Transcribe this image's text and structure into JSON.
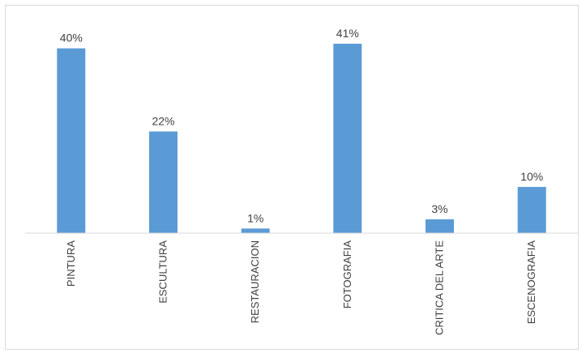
{
  "chart_data": {
    "type": "bar",
    "categories": [
      "PINTURA",
      "ESCULTURA",
      "RESTAURACION",
      "FOTOGRAFIA",
      "CRITICA DEL ARTE",
      "ESCENOGRAFIA"
    ],
    "values": [
      40,
      22,
      1,
      41,
      3,
      10
    ],
    "data_labels": [
      "40%",
      "22%",
      "1%",
      "41%",
      "3%",
      "10%"
    ],
    "title": "",
    "xlabel": "",
    "ylabel": "",
    "ylim": [
      0,
      41
    ],
    "grid": false,
    "legend": "none",
    "bar_color": "#5b9bd5",
    "axis_color": "#d9d9d9",
    "label_color": "#404040"
  }
}
